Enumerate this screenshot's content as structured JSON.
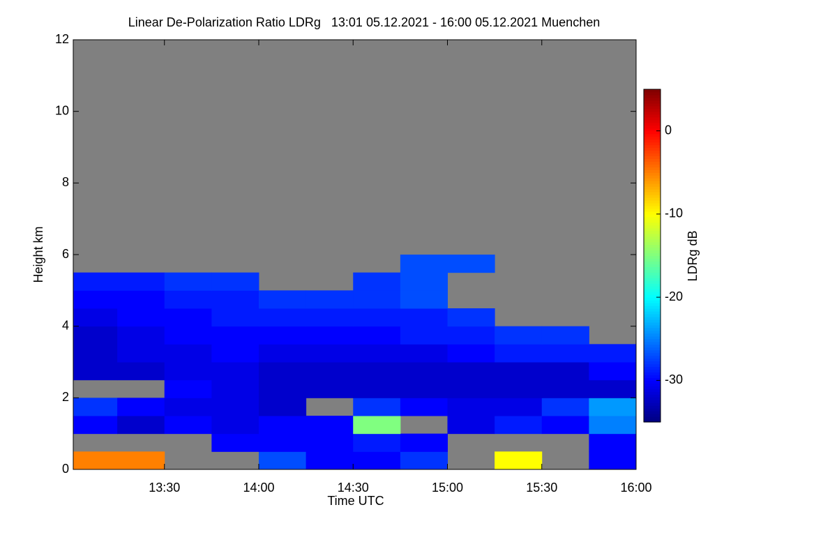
{
  "chart_data": {
    "type": "heatmap",
    "title": "Linear De-Polarization Ratio LDRg   13:01 05.12.2021 - 16:00 05.12.2021 Muenchen",
    "xlabel": "Time UTC",
    "ylabel": "Height km",
    "colorbar_label": "LDRg dB",
    "colormap": "jet",
    "null_color": "#808080",
    "xlim": [
      13.0167,
      16.0
    ],
    "ylim": [
      0,
      12
    ],
    "zlim": [
      -35,
      5
    ],
    "xticks": [
      {
        "value": 13.5,
        "label": "13:30"
      },
      {
        "value": 14,
        "label": "14:00"
      },
      {
        "value": 14.5,
        "label": "14:30"
      },
      {
        "value": 15,
        "label": "15:00"
      },
      {
        "value": 15.5,
        "label": "15:30"
      },
      {
        "value": 16,
        "label": "16:00"
      }
    ],
    "yticks": [
      0,
      2,
      4,
      6,
      8,
      10,
      12
    ],
    "zticks": [
      -30,
      -20,
      -10,
      0
    ],
    "x_edges": [
      13.0,
      13.25,
      13.5,
      13.75,
      14.0,
      14.25,
      14.5,
      14.75,
      15.0,
      15.25,
      15.5,
      15.75,
      16.0
    ],
    "y_edges": [
      0,
      0.5,
      1,
      1.5,
      2,
      2.5,
      3,
      3.5,
      4,
      4.5,
      5,
      5.5,
      6
    ],
    "values": [
      [
        -5,
        -5,
        null,
        null,
        -27,
        -30,
        -30,
        -28,
        null,
        -10,
        null,
        -30
      ],
      [
        null,
        null,
        null,
        -30,
        -30,
        -30,
        -29,
        -30,
        null,
        null,
        null,
        -30
      ],
      [
        -30,
        -32,
        -30,
        -31,
        -30,
        -30,
        -15,
        null,
        -31,
        -29,
        -30,
        -25
      ],
      [
        -28,
        -30,
        -31,
        -31,
        -32,
        null,
        -28,
        -30,
        -31,
        -31,
        -28,
        -24
      ],
      [
        null,
        null,
        -30,
        -31,
        -32,
        -32,
        -32,
        -32,
        -32,
        -32,
        -32,
        -32
      ],
      [
        -32,
        -32,
        -31,
        -31,
        -32,
        -32,
        -32,
        -32,
        -32,
        -32,
        -32,
        -30
      ],
      [
        -32,
        -31,
        -31,
        -30,
        -31,
        -31,
        -31,
        -31,
        -30,
        -29,
        -29,
        -29
      ],
      [
        -32,
        -31,
        -30,
        -30,
        -30,
        -30,
        -30,
        -29,
        -29,
        -28,
        -28,
        null
      ],
      [
        -31,
        -30,
        -30,
        -29,
        -29,
        -29,
        -29,
        -29,
        -28,
        null,
        null,
        null
      ],
      [
        -30,
        -30,
        -29,
        -29,
        -28,
        -28,
        -28,
        -27,
        null,
        null,
        null,
        null
      ],
      [
        -29,
        -29,
        -28,
        -28,
        null,
        null,
        -28,
        -27,
        null,
        null,
        null,
        null
      ],
      [
        null,
        null,
        null,
        null,
        null,
        null,
        null,
        -27,
        -27,
        null,
        null,
        null
      ]
    ]
  }
}
